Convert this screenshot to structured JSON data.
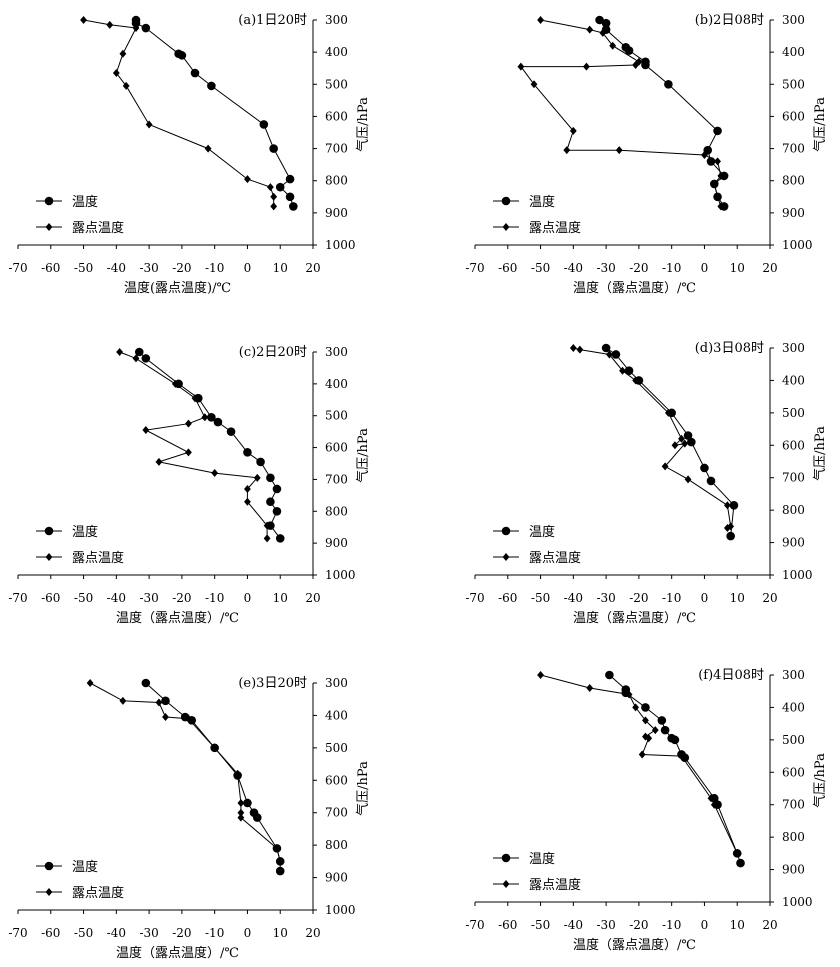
{
  "legend": {
    "temp_label": "温度",
    "dew_label": "露点温度"
  },
  "chart_data": [
    {
      "type": "line",
      "title": "(a)1日20时",
      "xlabel": "温度(露点温度)/℃",
      "ylabel": "气压/hPa",
      "xlim": [
        -70,
        20
      ],
      "ylim": [
        1000,
        300
      ],
      "xticks": [
        "-70",
        "-60",
        "-50",
        "-40",
        "-30",
        "-20",
        "-10",
        "0",
        "10",
        "20"
      ],
      "yticks": [
        "300",
        "400",
        "500",
        "600",
        "700",
        "800",
        "900",
        "1000"
      ],
      "series": [
        {
          "name": "温度",
          "points": [
            [
              -34,
              300
            ],
            [
              -34,
              310
            ],
            [
              -31,
              325
            ],
            [
              -21,
              405
            ],
            [
              -20,
              410
            ],
            [
              -16,
              465
            ],
            [
              -11,
              505
            ],
            [
              5,
              625
            ],
            [
              8,
              700
            ],
            [
              13,
              795
            ],
            [
              10,
              820
            ],
            [
              13,
              850
            ],
            [
              14,
              880
            ]
          ]
        },
        {
          "name": "露点温度",
          "points": [
            [
              -50,
              300
            ],
            [
              -42,
              315
            ],
            [
              -34,
              325
            ],
            [
              -38,
              405
            ],
            [
              -40,
              465
            ],
            [
              -37,
              505
            ],
            [
              -30,
              625
            ],
            [
              -12,
              700
            ],
            [
              0,
              795
            ],
            [
              7,
              820
            ],
            [
              8,
              850
            ],
            [
              8,
              880
            ]
          ]
        }
      ]
    },
    {
      "type": "line",
      "title": "(b)2日08时",
      "xlabel": "温度（露点温度）/℃",
      "ylabel": "气压/hPa",
      "xlim": [
        -70,
        20
      ],
      "ylim": [
        1000,
        300
      ],
      "xticks": [
        "-70",
        "-60",
        "-50",
        "-40",
        "-30",
        "-20",
        "-10",
        "0",
        "10",
        "20"
      ],
      "yticks": [
        "300",
        "400",
        "500",
        "600",
        "700",
        "800",
        "900",
        "1000"
      ],
      "series": [
        {
          "name": "温度",
          "points": [
            [
              -32,
              300
            ],
            [
              -30,
              310
            ],
            [
              -30,
              330
            ],
            [
              -24,
              385
            ],
            [
              -23,
              395
            ],
            [
              -18,
              430
            ],
            [
              -18,
              440
            ],
            [
              -11,
              500
            ],
            [
              4,
              645
            ],
            [
              1,
              705
            ],
            [
              2,
              740
            ],
            [
              6,
              785
            ],
            [
              3,
              810
            ],
            [
              4,
              850
            ],
            [
              6,
              880
            ]
          ]
        },
        {
          "name": "露点温度",
          "points": [
            [
              -50,
              300
            ],
            [
              -35,
              330
            ],
            [
              -31,
              340
            ],
            [
              -28,
              380
            ],
            [
              -20,
              430
            ],
            [
              -21,
              440
            ],
            [
              -36,
              445
            ],
            [
              -56,
              445
            ],
            [
              -52,
              500
            ],
            [
              -40,
              645
            ],
            [
              -42,
              705
            ],
            [
              -26,
              705
            ],
            [
              0,
              720
            ],
            [
              4,
              740
            ],
            [
              5,
              785
            ],
            [
              3,
              810
            ],
            [
              4,
              850
            ],
            [
              5,
              880
            ]
          ]
        }
      ]
    },
    {
      "type": "line",
      "title": "(c)2日20时",
      "xlabel": "温度（露点温度）/℃",
      "ylabel": "气压/hPa",
      "xlim": [
        -70,
        20
      ],
      "ylim": [
        1000,
        300
      ],
      "xticks": [
        "-70",
        "-60",
        "-50",
        "-40",
        "-30",
        "-20",
        "-10",
        "0",
        "10",
        "20"
      ],
      "yticks": [
        "300",
        "400",
        "500",
        "600",
        "700",
        "800",
        "900",
        "1000"
      ],
      "series": [
        {
          "name": "温度",
          "points": [
            [
              -33,
              300
            ],
            [
              -31,
              320
            ],
            [
              -21,
              400
            ],
            [
              -15,
              445
            ],
            [
              -11,
              505
            ],
            [
              -9,
              520
            ],
            [
              -5,
              550
            ],
            [
              0,
              615
            ],
            [
              4,
              645
            ],
            [
              7,
              695
            ],
            [
              9,
              730
            ],
            [
              7,
              770
            ],
            [
              9,
              800
            ],
            [
              7,
              845
            ],
            [
              10,
              885
            ]
          ]
        },
        {
          "name": "露点温度",
          "points": [
            [
              -39,
              300
            ],
            [
              -34,
              320
            ],
            [
              -22,
              400
            ],
            [
              -16,
              445
            ],
            [
              -13,
              505
            ],
            [
              -18,
              525
            ],
            [
              -31,
              545
            ],
            [
              -18,
              615
            ],
            [
              -27,
              645
            ],
            [
              -10,
              680
            ],
            [
              3,
              695
            ],
            [
              0,
              730
            ],
            [
              0,
              770
            ],
            [
              6,
              845
            ],
            [
              6,
              885
            ]
          ]
        }
      ]
    },
    {
      "type": "line",
      "title": "(d)3日08时",
      "xlabel": "温度（露点温度）/℃",
      "ylabel": "气压/hPa",
      "xlim": [
        -70,
        20
      ],
      "ylim": [
        1000,
        300
      ],
      "xticks": [
        "-70",
        "-60",
        "-50",
        "-40",
        "-30",
        "-20",
        "-10",
        "0",
        "10",
        "20"
      ],
      "yticks": [
        "300",
        "400",
        "500",
        "600",
        "700",
        "800",
        "900",
        "1000"
      ],
      "series": [
        {
          "name": "温度",
          "points": [
            [
              -30,
              300
            ],
            [
              -27,
              320
            ],
            [
              -23,
              370
            ],
            [
              -20,
              400
            ],
            [
              -10,
              500
            ],
            [
              -5,
              570
            ],
            [
              -4,
              590
            ],
            [
              0,
              670
            ],
            [
              2,
              710
            ],
            [
              9,
              785
            ],
            [
              8,
              880
            ]
          ]
        },
        {
          "name": "露点温度",
          "points": [
            [
              -40,
              300
            ],
            [
              -38,
              305
            ],
            [
              -29,
              320
            ],
            [
              -25,
              370
            ],
            [
              -21,
              400
            ],
            [
              -11,
              500
            ],
            [
              -7,
              580
            ],
            [
              -9,
              600
            ],
            [
              -6,
              595
            ],
            [
              -12,
              665
            ],
            [
              -5,
              705
            ],
            [
              7,
              785
            ],
            [
              8,
              850
            ],
            [
              7,
              855
            ]
          ]
        }
      ]
    },
    {
      "type": "line",
      "title": "(e)3日20时",
      "xlabel": "温度（露点温度）/℃",
      "ylabel": "气压/hPa",
      "xlim": [
        -70,
        20
      ],
      "ylim": [
        1000,
        300
      ],
      "xticks": [
        "-70",
        "-60",
        "-50",
        "-40",
        "-30",
        "-20",
        "-10",
        "0",
        "10",
        "20"
      ],
      "yticks": [
        "300",
        "400",
        "500",
        "600",
        "700",
        "800",
        "900",
        "1000"
      ],
      "series": [
        {
          "name": "温度",
          "points": [
            [
              -31,
              300
            ],
            [
              -25,
              355
            ],
            [
              -19,
              405
            ],
            [
              -17,
              415
            ],
            [
              -10,
              500
            ],
            [
              -3,
              585
            ],
            [
              0,
              670
            ],
            [
              2,
              700
            ],
            [
              3,
              715
            ],
            [
              9,
              810
            ],
            [
              10,
              850
            ],
            [
              10,
              880
            ]
          ]
        },
        {
          "name": "露点温度",
          "points": [
            [
              -48,
              300
            ],
            [
              -38,
              355
            ],
            [
              -27,
              360
            ],
            [
              -25,
              405
            ],
            [
              -18,
              410
            ],
            [
              -10,
              500
            ],
            [
              -3,
              580
            ],
            [
              -2,
              670
            ],
            [
              -2,
              700
            ],
            [
              -2,
              715
            ],
            [
              9,
              810
            ],
            [
              10,
              850
            ]
          ]
        }
      ]
    },
    {
      "type": "line",
      "title": "(f)4日08时",
      "xlabel": "温度（露点温度）/℃",
      "ylabel": "气压/hPa",
      "xlim": [
        -70,
        20
      ],
      "ylim": [
        1000,
        300
      ],
      "xticks": [
        "-70",
        "-60",
        "-50",
        "-40",
        "-30",
        "-20",
        "-10",
        "0",
        "10",
        "20"
      ],
      "yticks": [
        "300",
        "400",
        "500",
        "600",
        "700",
        "800",
        "900",
        "1000"
      ],
      "series": [
        {
          "name": "温度",
          "points": [
            [
              -29,
              300
            ],
            [
              -24,
              345
            ],
            [
              -24,
              355
            ],
            [
              -18,
              400
            ],
            [
              -13,
              440
            ],
            [
              -12,
              470
            ],
            [
              -10,
              495
            ],
            [
              -9,
              500
            ],
            [
              -7,
              545
            ],
            [
              -6,
              555
            ],
            [
              3,
              680
            ],
            [
              4,
              700
            ],
            [
              10,
              850
            ],
            [
              11,
              880
            ]
          ]
        },
        {
          "name": "露点温度",
          "points": [
            [
              -50,
              300
            ],
            [
              -35,
              340
            ],
            [
              -23,
              360
            ],
            [
              -21,
              400
            ],
            [
              -18,
              440
            ],
            [
              -15,
              470
            ],
            [
              -18,
              490
            ],
            [
              -17,
              495
            ],
            [
              -19,
              545
            ],
            [
              -7,
              550
            ],
            [
              2,
              680
            ],
            [
              3,
              700
            ],
            [
              10,
              850
            ]
          ]
        }
      ]
    }
  ]
}
